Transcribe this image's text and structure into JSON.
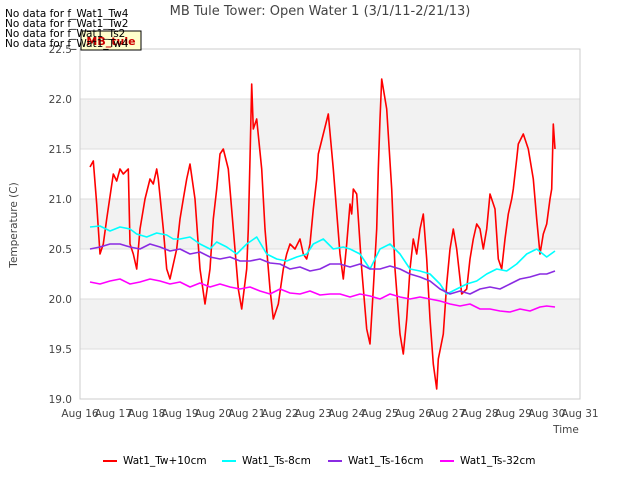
{
  "no_data_messages": [
    "No data for f_Wat1_Tw4",
    "No data for f_Wat1_Tw2",
    "No data for f_Wat1_Ts2",
    "No data for f_Wat1_Tw4"
  ],
  "mb_tule_badge": "MB_tule",
  "chart_data": {
    "type": "line",
    "title": "MB Tule Tower: Open Water 1 (3/1/11-2/21/13)",
    "xlabel": "Time",
    "ylabel": "Temperature (C)",
    "xlim": [
      16,
      31
    ],
    "ylim": [
      19.0,
      22.5
    ],
    "x_ticks": [
      16,
      17,
      18,
      19,
      20,
      21,
      22,
      23,
      24,
      25,
      26,
      27,
      28,
      29,
      30,
      31
    ],
    "x_tick_labels": [
      "Aug 16",
      "Aug 17",
      "Aug 18",
      "Aug 19",
      "Aug 20",
      "Aug 21",
      "Aug 22",
      "Aug 23",
      "Aug 24",
      "Aug 25",
      "Aug 26",
      "Aug 27",
      "Aug 28",
      "Aug 29",
      "Aug 30",
      "Aug 31"
    ],
    "y_ticks": [
      19.0,
      19.5,
      20.0,
      20.5,
      21.0,
      21.5,
      22.0,
      22.5
    ],
    "y_tick_labels": [
      "19.0",
      "19.5",
      "20.0",
      "20.5",
      "21.0",
      "21.5",
      "22.0",
      "22.5"
    ],
    "grid": true,
    "legend_position": "bottom",
    "series": [
      {
        "name": "Wat1_Tw+10cm",
        "color": "#ff0000",
        "x": [
          16.3,
          16.4,
          16.5,
          16.6,
          16.7,
          16.8,
          17.0,
          17.1,
          17.2,
          17.3,
          17.45,
          17.5,
          17.6,
          17.7,
          17.8,
          17.95,
          18.1,
          18.2,
          18.3,
          18.35,
          18.5,
          18.6,
          18.7,
          18.9,
          19.0,
          19.1,
          19.2,
          19.3,
          19.45,
          19.6,
          19.75,
          19.9,
          20.0,
          20.1,
          20.2,
          20.3,
          20.45,
          20.6,
          20.75,
          20.85,
          21.0,
          21.05,
          21.1,
          21.15,
          21.2,
          21.3,
          21.45,
          21.55,
          21.7,
          21.8,
          21.95,
          22.1,
          22.2,
          22.3,
          22.45,
          22.6,
          22.7,
          22.8,
          22.9,
          23.0,
          23.1,
          23.15,
          23.3,
          23.45,
          23.6,
          23.8,
          23.9,
          24.0,
          24.1,
          24.15,
          24.2,
          24.3,
          24.45,
          24.6,
          24.7,
          24.8,
          24.9,
          24.95,
          25.0,
          25.05,
          25.2,
          25.35,
          25.45,
          25.6,
          25.7,
          25.8,
          25.9,
          26.0,
          26.1,
          26.2,
          26.3,
          26.4,
          26.5,
          26.6,
          26.7,
          26.75,
          26.9,
          27.0,
          27.1,
          27.2,
          27.3,
          27.45,
          27.6,
          27.7,
          27.8,
          27.9,
          28.0,
          28.1,
          28.2,
          28.3,
          28.45,
          28.55,
          28.65,
          28.75,
          28.85,
          28.95,
          29.0,
          29.1,
          29.15,
          29.3,
          29.45,
          29.6,
          29.7,
          29.8,
          29.9,
          30.0,
          30.1,
          30.15,
          30.2,
          30.25
        ],
        "values": [
          21.32,
          21.38,
          20.95,
          20.45,
          20.55,
          20.8,
          21.25,
          21.18,
          21.3,
          21.25,
          21.3,
          20.55,
          20.45,
          20.3,
          20.7,
          21.0,
          21.2,
          21.15,
          21.3,
          21.2,
          20.7,
          20.3,
          20.2,
          20.5,
          20.8,
          21.0,
          21.2,
          21.35,
          21.0,
          20.3,
          19.95,
          20.3,
          20.8,
          21.1,
          21.45,
          21.5,
          21.3,
          20.7,
          20.1,
          19.9,
          20.3,
          20.7,
          21.4,
          22.15,
          21.7,
          21.8,
          21.3,
          20.7,
          20.1,
          19.8,
          19.95,
          20.3,
          20.45,
          20.55,
          20.5,
          20.6,
          20.45,
          20.4,
          20.55,
          20.9,
          21.2,
          21.45,
          21.65,
          21.85,
          21.3,
          20.45,
          20.2,
          20.55,
          20.95,
          20.85,
          21.1,
          21.05,
          20.3,
          19.7,
          19.55,
          20.1,
          20.7,
          21.3,
          21.8,
          22.2,
          21.9,
          21.1,
          20.3,
          19.65,
          19.45,
          19.8,
          20.3,
          20.6,
          20.45,
          20.7,
          20.85,
          20.4,
          19.8,
          19.35,
          19.1,
          19.4,
          19.65,
          20.15,
          20.5,
          20.7,
          20.5,
          20.05,
          20.1,
          20.4,
          20.6,
          20.75,
          20.7,
          20.5,
          20.7,
          21.05,
          20.9,
          20.4,
          20.3,
          20.6,
          20.85,
          21.0,
          21.1,
          21.4,
          21.55,
          21.65,
          21.5,
          21.2,
          20.8,
          20.45,
          20.65,
          20.75,
          21.0,
          21.1,
          21.75,
          21.5
        ],
        "draw_x": [
          16.3,
          16.4,
          16.5,
          16.6,
          16.7,
          16.8,
          17.0,
          17.1,
          17.2,
          17.3,
          17.45,
          17.5,
          17.6,
          17.7,
          17.8,
          17.95,
          18.1,
          18.2,
          18.3,
          18.35,
          18.5,
          18.6,
          18.7,
          18.9,
          19.0,
          19.1,
          19.2,
          19.3,
          19.45,
          19.6,
          19.75,
          19.9,
          20.0,
          20.1,
          20.2,
          20.3,
          20.45,
          20.6,
          20.75,
          20.85,
          21.0,
          21.05,
          21.1,
          21.15,
          21.2,
          21.3,
          21.45,
          21.55,
          21.7,
          21.8,
          21.95,
          22.1,
          22.2,
          22.3,
          22.45,
          22.6,
          22.7,
          22.8,
          22.9,
          23.0,
          23.1,
          23.15,
          23.3,
          23.45,
          23.6,
          23.8,
          23.9,
          24.0,
          24.1,
          24.15,
          24.2,
          24.3,
          24.45,
          24.6,
          24.7,
          24.8,
          24.9,
          24.95,
          25.0,
          25.05,
          25.2,
          25.35,
          25.45,
          25.6,
          25.7,
          25.8,
          25.9,
          26.0,
          26.1,
          26.2,
          26.3,
          26.4,
          26.5,
          26.6,
          26.7,
          26.75,
          26.9,
          27.0,
          27.1,
          27.2,
          27.3,
          27.45,
          27.6,
          27.7,
          27.8,
          27.9,
          28.0,
          28.1,
          28.2,
          28.3,
          28.45,
          28.55,
          28.65,
          28.75,
          28.85,
          28.95,
          29.0,
          29.1,
          29.15,
          29.3,
          29.45,
          29.6,
          29.7,
          29.8,
          29.9,
          30.0,
          30.1,
          30.15,
          30.2,
          30.25
        ]
      },
      {
        "name": "Wat1_Ts-8cm",
        "color": "#00ffff",
        "x": [
          16.3,
          16.6,
          16.9,
          17.2,
          17.5,
          17.7,
          18.0,
          18.3,
          18.6,
          18.8,
          19.0,
          19.3,
          19.6,
          19.9,
          20.1,
          20.4,
          20.7,
          21.0,
          21.3,
          21.6,
          21.9,
          22.2,
          22.5,
          22.8,
          23.0,
          23.3,
          23.6,
          23.9,
          24.1,
          24.4,
          24.7,
          25.0,
          25.3,
          25.6,
          25.9,
          26.2,
          26.5,
          26.8,
          27.0,
          27.3,
          27.6,
          27.9,
          28.2,
          28.5,
          28.8,
          29.1,
          29.4,
          29.7,
          30.0,
          30.25
        ],
        "values": [
          20.72,
          20.73,
          20.68,
          20.72,
          20.7,
          20.65,
          20.62,
          20.66,
          20.64,
          20.6,
          20.6,
          20.62,
          20.55,
          20.5,
          20.57,
          20.52,
          20.45,
          20.55,
          20.62,
          20.45,
          20.4,
          20.38,
          20.42,
          20.45,
          20.55,
          20.6,
          20.5,
          20.52,
          20.5,
          20.45,
          20.3,
          20.5,
          20.55,
          20.45,
          20.3,
          20.28,
          20.25,
          20.15,
          20.05,
          20.1,
          20.15,
          20.18,
          20.25,
          20.3,
          20.28,
          20.35,
          20.45,
          20.5,
          20.42,
          20.48
        ]
      },
      {
        "name": "Wat1_Ts-16cm",
        "color": "#8a2be2",
        "x": [
          16.3,
          16.6,
          16.9,
          17.2,
          17.5,
          17.8,
          18.1,
          18.4,
          18.7,
          19.0,
          19.3,
          19.6,
          19.9,
          20.2,
          20.5,
          20.8,
          21.1,
          21.4,
          21.7,
          22.0,
          22.3,
          22.6,
          22.9,
          23.2,
          23.5,
          23.8,
          24.1,
          24.4,
          24.7,
          25.0,
          25.3,
          25.6,
          25.9,
          26.2,
          26.5,
          26.8,
          27.1,
          27.4,
          27.7,
          28.0,
          28.3,
          28.6,
          28.9,
          29.2,
          29.5,
          29.8,
          30.0,
          30.25
        ],
        "values": [
          20.5,
          20.52,
          20.55,
          20.55,
          20.52,
          20.5,
          20.55,
          20.52,
          20.48,
          20.5,
          20.45,
          20.47,
          20.42,
          20.4,
          20.42,
          20.38,
          20.38,
          20.4,
          20.36,
          20.35,
          20.3,
          20.32,
          20.28,
          20.3,
          20.35,
          20.35,
          20.32,
          20.35,
          20.3,
          20.3,
          20.33,
          20.3,
          20.25,
          20.22,
          20.18,
          20.1,
          20.05,
          20.08,
          20.05,
          20.1,
          20.12,
          20.1,
          20.15,
          20.2,
          20.22,
          20.25,
          20.25,
          20.28
        ]
      },
      {
        "name": "Wat1_Ts-32cm",
        "color": "#ff00ff",
        "x": [
          16.3,
          16.6,
          16.9,
          17.2,
          17.5,
          17.8,
          18.1,
          18.4,
          18.7,
          19.0,
          19.3,
          19.6,
          19.9,
          20.2,
          20.5,
          20.8,
          21.1,
          21.4,
          21.7,
          22.0,
          22.3,
          22.6,
          22.9,
          23.2,
          23.5,
          23.8,
          24.1,
          24.4,
          24.7,
          25.0,
          25.3,
          25.6,
          25.9,
          26.2,
          26.5,
          26.8,
          27.1,
          27.4,
          27.7,
          28.0,
          28.3,
          28.6,
          28.9,
          29.2,
          29.5,
          29.8,
          30.0,
          30.25
        ],
        "values": [
          20.17,
          20.15,
          20.18,
          20.2,
          20.15,
          20.17,
          20.2,
          20.18,
          20.15,
          20.17,
          20.12,
          20.16,
          20.12,
          20.15,
          20.12,
          20.1,
          20.12,
          20.08,
          20.05,
          20.1,
          20.06,
          20.05,
          20.08,
          20.04,
          20.05,
          20.05,
          20.02,
          20.05,
          20.03,
          20.0,
          20.05,
          20.02,
          20.0,
          20.02,
          20.0,
          19.98,
          19.95,
          19.93,
          19.95,
          19.9,
          19.9,
          19.88,
          19.87,
          19.9,
          19.88,
          19.92,
          19.93,
          19.92
        ]
      }
    ]
  }
}
